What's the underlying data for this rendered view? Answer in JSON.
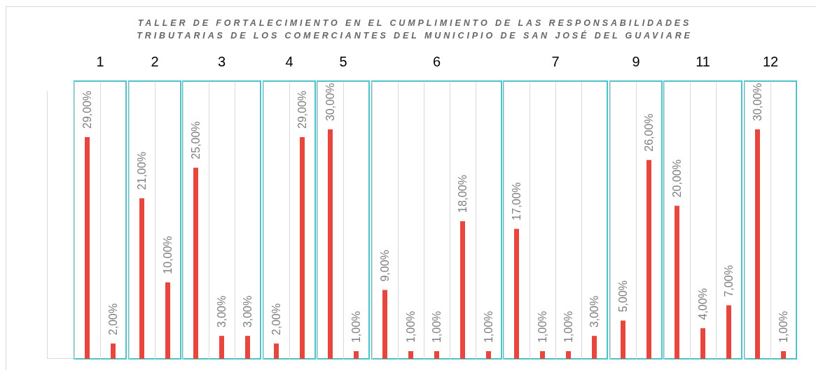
{
  "chart_data": [
    {
      "type": "other",
      "title": "TALLER DE FORTALECIMIENTO EN EL CUMPLIMIENTO DE LAS RESPONSABILIDADES\nTRIBUTARIAS DE LOS COMERCIANTES DEL MUNICIPIO DE SAN JOSÉ DEL GUAVIARE"
    },
    {
      "type": "bar",
      "title": "1",
      "categories": [
        null,
        null
      ],
      "values": [
        29,
        2
      ],
      "value_labels": [
        "29,00%",
        "2,00%"
      ],
      "color": "#e8453c",
      "grid": "x",
      "tick_labels": false
    },
    {
      "type": "bar",
      "title": "2",
      "categories": [
        null,
        null
      ],
      "values": [
        21,
        10
      ],
      "value_labels": [
        "21,00%",
        "10,00%"
      ],
      "color": "#e8453c",
      "grid": "x",
      "tick_labels": false
    },
    {
      "type": "bar",
      "title": "3",
      "categories": [
        null,
        null,
        null
      ],
      "values": [
        25,
        3,
        3
      ],
      "value_labels": [
        "25,00%",
        "3,00%",
        "3,00%"
      ],
      "color": "#e8453c",
      "grid": "x",
      "tick_labels": false
    },
    {
      "type": "bar",
      "title": "4",
      "categories": [
        null,
        null
      ],
      "values": [
        2,
        29
      ],
      "value_labels": [
        "2,00%",
        "29,00%"
      ],
      "color": "#e8453c",
      "grid": "x",
      "tick_labels": false
    },
    {
      "type": "bar",
      "title": "5",
      "categories": [
        null,
        null
      ],
      "values": [
        30,
        1
      ],
      "value_labels": [
        "30,00%",
        "1,00%"
      ],
      "color": "#e8453c",
      "grid": "x",
      "tick_labels": false
    },
    {
      "type": "bar",
      "title": "6",
      "categories": [
        null,
        null,
        null,
        null,
        null
      ],
      "values": [
        9,
        1,
        1,
        18,
        1
      ],
      "value_labels": [
        "9,00%",
        "1,00%",
        "1,00%",
        "18,00%",
        "1,00%"
      ],
      "color": "#e8453c",
      "grid": "x",
      "tick_labels": false
    },
    {
      "type": "bar",
      "title": "7",
      "categories": [
        null,
        null,
        null,
        null
      ],
      "values": [
        17,
        1,
        1,
        3
      ],
      "value_labels": [
        "17,00%",
        "1,00%",
        "1,00%",
        "3,00%"
      ],
      "color": "#e8453c",
      "grid": "x",
      "tick_labels": false
    },
    {
      "type": "bar",
      "title": "9",
      "categories": [
        null,
        null
      ],
      "values": [
        5,
        26
      ],
      "value_labels": [
        "5,00%",
        "26,00%"
      ],
      "color": "#e8453c",
      "grid": "x",
      "tick_labels": false
    },
    {
      "type": "bar",
      "title": "11",
      "categories": [
        null,
        null,
        null
      ],
      "values": [
        20,
        4,
        7
      ],
      "value_labels": [
        "20,00%",
        "4,00%",
        "7,00%"
      ],
      "color": "#e8453c",
      "grid": "x",
      "tick_labels": false
    },
    {
      "type": "bar",
      "title": "12",
      "categories": [
        null,
        null
      ],
      "values": [
        30,
        1
      ],
      "value_labels": [
        "30,00%",
        "1,00%"
      ],
      "color": "#e8453c",
      "grid": "x",
      "tick_labels": false
    }
  ]
}
